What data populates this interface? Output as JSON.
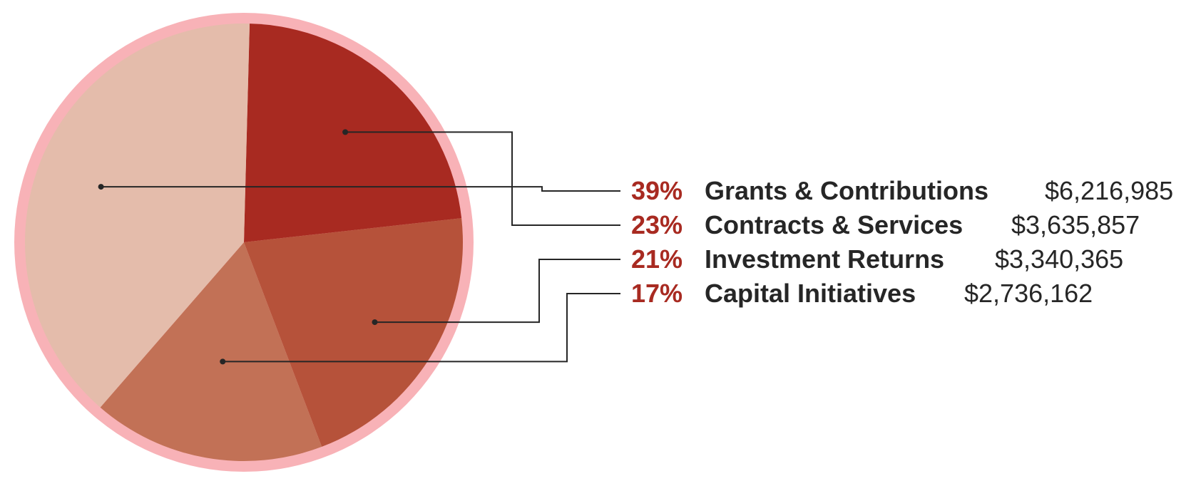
{
  "chart_data": {
    "type": "pie",
    "slices": [
      {
        "label": "Grants & Contributions",
        "percent_label": "39%",
        "amount": "$6,216,985",
        "value": 6216985,
        "color": "#e4bcab"
      },
      {
        "label": "Contracts & Services",
        "percent_label": "23%",
        "amount": "$3,635,857",
        "value": 3635857,
        "color": "#a82a21"
      },
      {
        "label": "Investment Returns",
        "percent_label": "21%",
        "amount": "$3,340,365",
        "value": 3340365,
        "color": "#b6523a"
      },
      {
        "label": "Capital Initiatives",
        "percent_label": "17%",
        "amount": "$2,736,162",
        "value": 2736162,
        "color": "#c27156"
      }
    ],
    "ring_color": "#f8b2b7",
    "percent_color": "#a82a21",
    "leader_color": "#262626"
  }
}
